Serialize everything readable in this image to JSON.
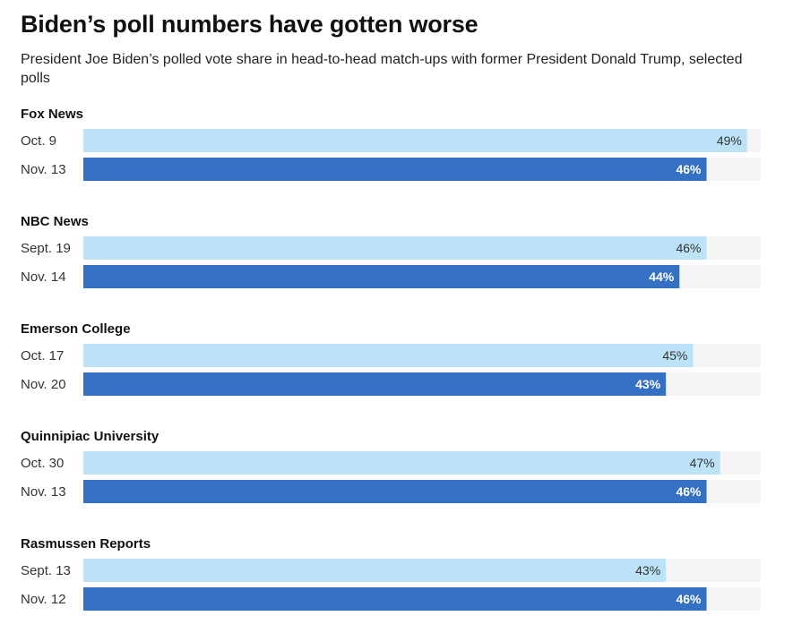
{
  "chart_data": {
    "type": "bar",
    "orientation": "horizontal",
    "title": "Biden’s poll numbers have gotten worse",
    "subtitle": "President Joe Biden’s polled vote share in head-to-head match-ups with former President Donald Trump, selected polls",
    "xlim": [
      0,
      50
    ],
    "grid": false,
    "colors": {
      "earlier": "#bde3f9",
      "later": "#3570c2",
      "track": "#f4f4f4"
    },
    "groups": [
      {
        "name": "Fox News",
        "polls": [
          {
            "date": "Oct. 9",
            "value": 49,
            "label": "49%"
          },
          {
            "date": "Nov. 13",
            "value": 46,
            "label": "46%"
          }
        ]
      },
      {
        "name": "NBC News",
        "polls": [
          {
            "date": "Sept. 19",
            "value": 46,
            "label": "46%"
          },
          {
            "date": "Nov. 14",
            "value": 44,
            "label": "44%"
          }
        ]
      },
      {
        "name": "Emerson College",
        "polls": [
          {
            "date": "Oct. 17",
            "value": 45,
            "label": "45%"
          },
          {
            "date": "Nov. 20",
            "value": 43,
            "label": "43%"
          }
        ]
      },
      {
        "name": "Quinnipiac University",
        "polls": [
          {
            "date": "Oct. 30",
            "value": 47,
            "label": "47%"
          },
          {
            "date": "Nov. 13",
            "value": 46,
            "label": "46%"
          }
        ]
      },
      {
        "name": "Rasmussen Reports",
        "polls": [
          {
            "date": "Sept. 13",
            "value": 43,
            "label": "43%"
          },
          {
            "date": "Nov. 12",
            "value": 46,
            "label": "46%"
          }
        ]
      }
    ]
  }
}
